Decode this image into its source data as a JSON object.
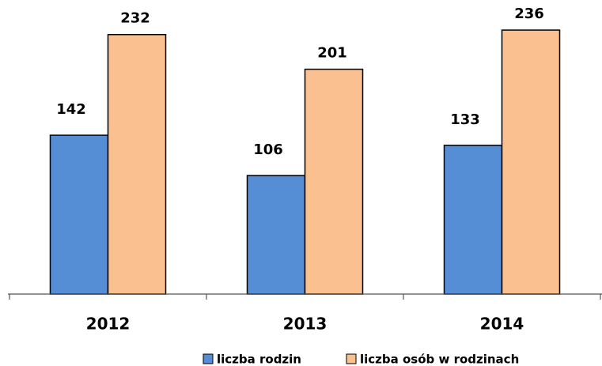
{
  "chart_data": {
    "type": "bar",
    "categories": [
      "2012",
      "2013",
      "2014"
    ],
    "series": [
      {
        "name": "liczba rodzin",
        "color": "#558ed5",
        "values": [
          142,
          106,
          133
        ]
      },
      {
        "name": "liczba osób w rodzinach",
        "color": "#fac090",
        "values": [
          232,
          201,
          236
        ]
      }
    ],
    "legend": "bottom"
  }
}
